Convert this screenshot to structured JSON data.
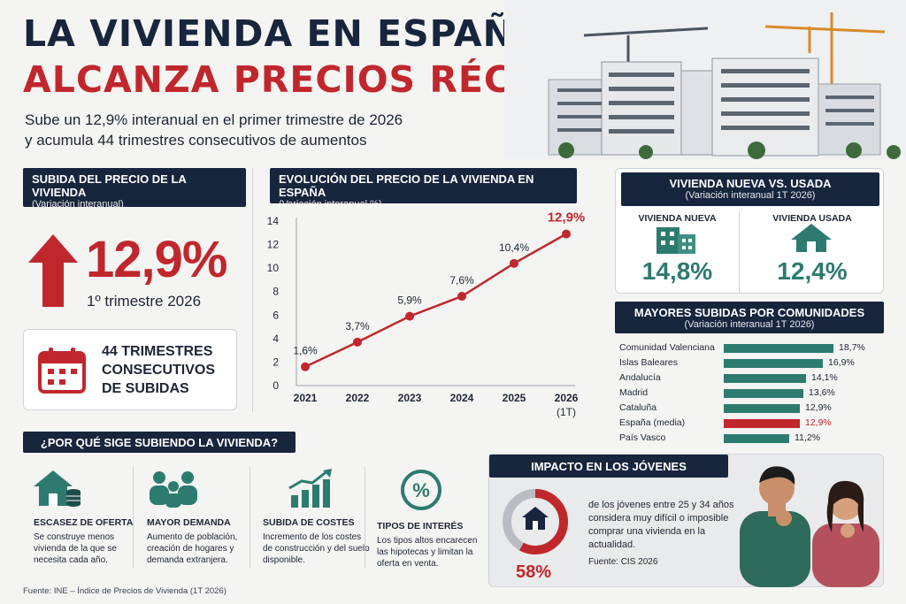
{
  "header": {
    "title_line1": "LA VIVIENDA EN ESPAÑA",
    "title_line2": "ALCANZA PRECIOS RÉCORD",
    "subtitle_line1": "Sube un 12,9% interanual en el primer trimestre de 2026",
    "subtitle_line2": "y acumula 44 trimestres consecutivos de aumentos"
  },
  "rise_panel": {
    "title": "SUBIDA DEL PRECIO DE LA VIVIENDA",
    "subtitle": "(Variación interanual)",
    "value": "12,9%",
    "period": "1º trimestre 2026",
    "streak_line1": "44 TRIMESTRES",
    "streak_line2": "CONSECUTIVOS",
    "streak_line3": "DE SUBIDAS",
    "arrow_icon": "arrow-up-icon",
    "calendar_icon": "calendar-icon"
  },
  "evolution_panel": {
    "title": "EVOLUCIÓN DEL PRECIO DE LA VIVIENDA EN ESPAÑA",
    "subtitle": "(Variación interanual %)"
  },
  "chart_data": {
    "type": "line",
    "x": [
      "2021",
      "2022",
      "2023",
      "2024",
      "2025",
      "2026 (1T)"
    ],
    "x_tick_line1": [
      "2021",
      "2022",
      "2023",
      "2024",
      "2025",
      "2026"
    ],
    "x_tick_line2": [
      "",
      "",
      "",
      "",
      "",
      "(1T)"
    ],
    "values": [
      1.6,
      3.7,
      5.9,
      7.6,
      10.4,
      12.9
    ],
    "data_labels": [
      "1,6%",
      "3,7%",
      "5,9%",
      "7,6%",
      "10,4%",
      "12,9%"
    ],
    "y_ticks": [
      0,
      2,
      4,
      6,
      8,
      10,
      12,
      14
    ],
    "ylim": [
      0,
      14
    ],
    "grid": false,
    "line_color": "#c0272d"
  },
  "new_vs_used": {
    "title": "VIVIENDA NUEVA VS. USADA",
    "subtitle": "(Variación interanual 1T 2026)",
    "new_label": "VIVIENDA NUEVA",
    "new_value": "14,8%",
    "new_fraction": 0.148,
    "used_label": "VIVIENDA USADA",
    "used_value": "12,4%",
    "used_fraction": 0.124,
    "new_icon": "building-icon",
    "used_icon": "house-icon"
  },
  "regions": {
    "title": "MAYORES SUBIDAS POR COMUNIDADES",
    "subtitle": "(Variación interanual 1T 2026)",
    "items": [
      {
        "name": "Comunidad Valenciana",
        "value": 18.7,
        "label": "18,7%",
        "highlight": false
      },
      {
        "name": "Islas Baleares",
        "value": 16.9,
        "label": "16,9%",
        "highlight": false
      },
      {
        "name": "Andalucía",
        "value": 14.1,
        "label": "14,1%",
        "highlight": false
      },
      {
        "name": "Madrid",
        "value": 13.6,
        "label": "13,6%",
        "highlight": false
      },
      {
        "name": "Cataluña",
        "value": 12.9,
        "label": "12,9%",
        "highlight": false
      },
      {
        "name": "España (media)",
        "value": 12.9,
        "label": "12,9%",
        "highlight": true
      },
      {
        "name": "País Vasco",
        "value": 11.2,
        "label": "11,2%",
        "highlight": false
      }
    ],
    "bar_color": "#2d7b6f",
    "highlight_color": "#c0272d"
  },
  "why": {
    "title": "¿POR QUÉ SIGE SUBIENDO LA VIVIENDA?",
    "items": [
      {
        "icon": "house-coins-icon",
        "title": "ESCASEZ DE OFERTA",
        "desc": "Se construye menos vivienda de la que se necesita cada año."
      },
      {
        "icon": "people-icon",
        "title": "MAYOR DEMANDA",
        "desc": "Aumento de población, creación de hogares y demanda extranjera."
      },
      {
        "icon": "rising-bars-icon",
        "title": "SUBIDA DE COSTES",
        "desc": "Incremento de los costes de construcción y del suelo disponible."
      },
      {
        "icon": "percent-icon",
        "title": "TIPOS DE INTERÉS",
        "desc": "Los tipos altos encarecen las hipotecas y limitan la oferta en venta."
      }
    ]
  },
  "youth": {
    "title": "IMPACTO EN LOS JÓVENES",
    "value": "58%",
    "fraction": 0.58,
    "text": "de los jóvenes entre 25 y 34 años considera muy difícil o imposible comprar una vivienda en la actualidad.",
    "source": "Fuente: CIS 2026"
  },
  "footer": {
    "source": "Fuente: INE – Índice de Precios de Vivienda (1T 2026)"
  }
}
